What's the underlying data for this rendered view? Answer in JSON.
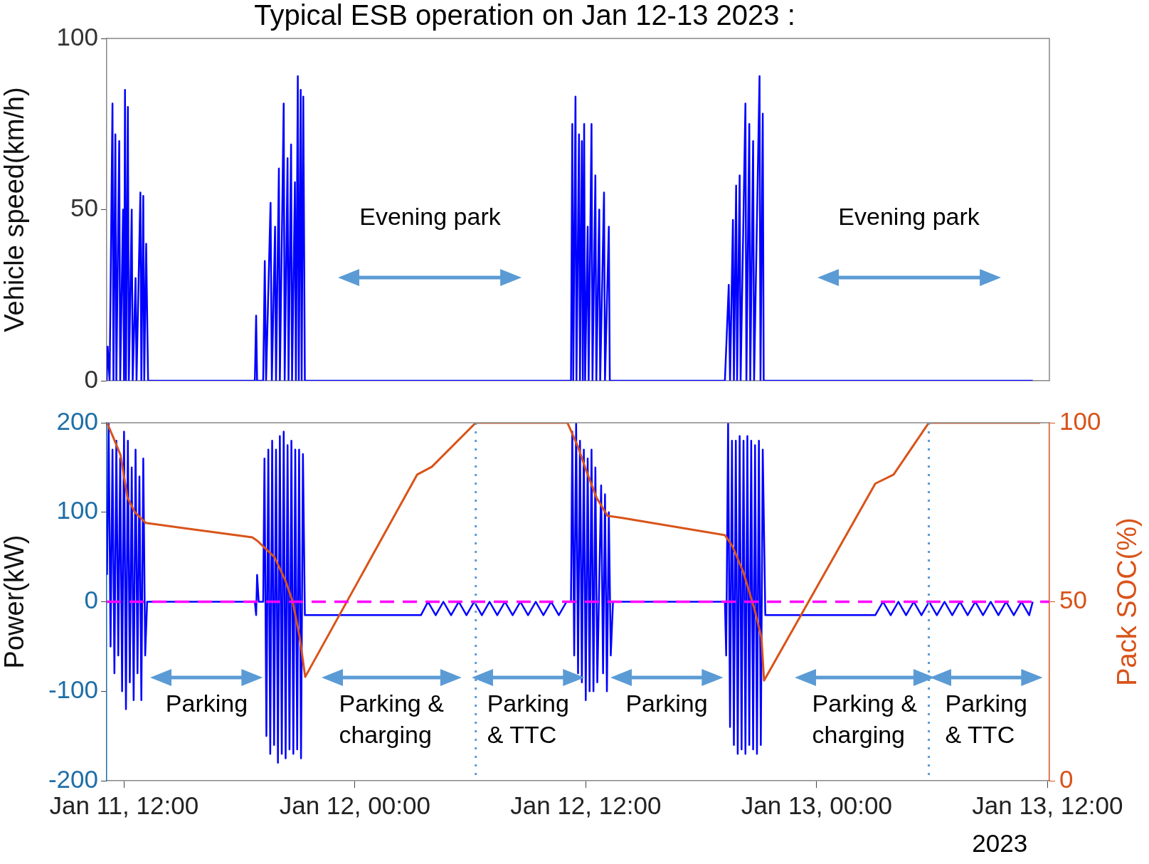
{
  "chart_data": [
    {
      "type": "line",
      "title": "Typical ESB operation on Jan 12-13 2023 :",
      "ylabel": "Vehicle speed(km/h)",
      "xlim": [
        "2023-01-11T11:06",
        "2023-01-13T12:06"
      ],
      "ylim": [
        0,
        100
      ],
      "yticks": [
        0,
        50,
        100
      ],
      "tick_labels": "y",
      "grid": false,
      "legend": false,
      "series": [
        {
          "color": "#0000ff",
          "x": [
            "2023-01-11T11:06",
            "2023-01-11T11:09",
            "2023-01-11T11:15",
            "2023-01-11T11:24",
            "2023-01-11T11:27",
            "2023-01-11T11:33",
            "2023-01-11T11:36",
            "2023-01-11T11:45",
            "2023-01-11T11:48",
            "2023-01-11T11:57",
            "2023-01-11T12:00",
            "2023-01-11T12:03",
            "2023-01-11T12:06",
            "2023-01-11T12:12",
            "2023-01-11T12:15",
            "2023-01-11T12:24",
            "2023-01-11T12:27",
            "2023-01-11T12:36",
            "2023-01-11T12:39",
            "2023-01-11T12:51",
            "2023-01-11T12:54",
            "2023-01-11T13:00",
            "2023-01-11T13:03",
            "2023-01-11T13:09",
            "2023-01-11T13:15",
            "2023-01-11T18:48",
            "2023-01-11T18:52",
            "2023-01-11T18:55",
            "2023-01-11T19:14",
            "2023-01-11T19:19",
            "2023-01-11T19:23",
            "2023-01-11T19:37",
            "2023-01-11T19:41",
            "2023-01-11T19:51",
            "2023-01-11T19:54",
            "2023-01-11T20:03",
            "2023-01-11T20:06",
            "2023-01-11T20:18",
            "2023-01-11T20:21",
            "2023-01-11T20:30",
            "2023-01-11T20:33",
            "2023-01-11T20:41",
            "2023-01-11T20:44",
            "2023-01-11T20:53",
            "2023-01-11T20:56",
            "2023-01-11T21:02",
            "2023-01-11T21:05",
            "2023-01-11T21:11",
            "2023-01-11T21:14",
            "2023-01-11T21:19",
            "2023-01-11T21:24",
            "2023-01-12T11:14",
            "2023-01-12T11:18",
            "2023-01-12T11:21",
            "2023-01-12T11:28",
            "2023-01-12T11:31",
            "2023-01-12T11:39",
            "2023-01-12T11:42",
            "2023-01-12T11:48",
            "2023-01-12T11:51",
            "2023-01-12T11:55",
            "2023-01-12T11:58",
            "2023-01-12T12:06",
            "2023-01-12T12:09",
            "2023-01-12T12:18",
            "2023-01-12T12:21",
            "2023-01-12T12:30",
            "2023-01-12T12:33",
            "2023-01-12T12:42",
            "2023-01-12T12:45",
            "2023-01-12T12:57",
            "2023-01-12T13:00",
            "2023-01-12T13:12",
            "2023-01-12T13:15",
            "2023-01-12T13:25",
            "2023-01-12T19:14",
            "2023-01-12T19:26",
            "2023-01-12T19:30",
            "2023-01-12T19:39",
            "2023-01-12T19:42",
            "2023-01-12T19:49",
            "2023-01-12T19:52",
            "2023-01-12T20:00",
            "2023-01-12T20:03",
            "2023-01-12T20:18",
            "2023-01-12T20:21",
            "2023-01-12T20:30",
            "2023-01-12T20:33",
            "2023-01-12T20:42",
            "2023-01-12T20:45",
            "2023-01-12T21:02",
            "2023-01-12T21:05",
            "2023-01-12T21:12",
            "2023-01-12T21:15",
            "2023-01-12T21:20",
            "2023-01-13T11:14"
          ],
          "values": [
            0,
            10,
            0,
            81,
            0,
            72,
            0,
            70,
            0,
            50,
            0,
            85,
            0,
            80,
            0,
            50,
            0,
            30,
            0,
            55,
            0,
            54,
            0,
            40,
            0,
            0,
            19,
            0,
            0,
            35,
            0,
            52,
            0,
            45,
            0,
            62,
            0,
            81,
            0,
            65,
            0,
            69,
            0,
            58,
            0,
            89,
            0,
            85,
            0,
            83,
            0,
            0,
            75,
            0,
            83,
            0,
            72,
            0,
            70,
            0,
            75,
            0,
            45,
            0,
            75,
            0,
            60,
            0,
            50,
            0,
            55,
            0,
            45,
            0,
            0,
            0,
            28,
            0,
            47,
            0,
            57,
            0,
            60,
            0,
            81,
            0,
            75,
            0,
            70,
            0,
            89,
            0,
            78,
            0,
            0,
            0
          ]
        }
      ],
      "annotations": [
        "Evening park",
        "Evening park"
      ]
    },
    {
      "type": "line",
      "ylabel": "Power(kW)",
      "y2label": "Pack SOC(%)",
      "xlim": [
        "2023-01-11T11:06",
        "2023-01-13T12:06"
      ],
      "xticks": [
        {
          "value": "2023-01-11T12:00",
          "label": "Jan 11, 12:00"
        },
        {
          "value": "2023-01-12T00:00",
          "label": "Jan 12, 00:00"
        },
        {
          "value": "2023-01-12T12:00",
          "label": "Jan 12, 12:00"
        },
        {
          "value": "2023-01-13T00:00",
          "label": "Jan 13, 00:00"
        },
        {
          "value": "2023-01-13T12:00",
          "label": "Jan 13, 12:00"
        }
      ],
      "ylim": [
        -200,
        200
      ],
      "yticks": [
        -200,
        -100,
        0,
        100,
        200
      ],
      "y2lim": [
        0,
        100
      ],
      "y2ticks": [
        0,
        50,
        100
      ],
      "grid": false,
      "legend": false,
      "series": [
        {
          "color": "#0000ff",
          "x": [
            "2023-01-11T11:07",
            "2023-01-11T11:12",
            "2023-01-11T11:18",
            "2023-01-11T11:24",
            "2023-01-11T11:30",
            "2023-01-11T11:36",
            "2023-01-11T11:42",
            "2023-01-11T11:48",
            "2023-01-11T11:54",
            "2023-01-11T12:00",
            "2023-01-11T12:06",
            "2023-01-11T12:12",
            "2023-01-11T12:18",
            "2023-01-11T12:24",
            "2023-01-11T12:30",
            "2023-01-11T12:36",
            "2023-01-11T12:42",
            "2023-01-11T12:48",
            "2023-01-11T12:54",
            "2023-01-11T13:00",
            "2023-01-11T13:06",
            "2023-01-11T13:12",
            "2023-01-11T18:48",
            "2023-01-11T18:52",
            "2023-01-11T18:55",
            "2023-01-11T19:00",
            "2023-01-11T19:14",
            "2023-01-11T19:18",
            "2023-01-11T19:24",
            "2023-01-11T19:30",
            "2023-01-11T19:36",
            "2023-01-11T19:42",
            "2023-01-11T19:48",
            "2023-01-11T19:54",
            "2023-01-11T20:00",
            "2023-01-11T20:06",
            "2023-01-11T20:12",
            "2023-01-11T20:18",
            "2023-01-11T20:24",
            "2023-01-11T20:30",
            "2023-01-11T20:36",
            "2023-01-11T20:42",
            "2023-01-11T20:48",
            "2023-01-11T20:54",
            "2023-01-11T21:00",
            "2023-01-11T21:06",
            "2023-01-11T21:12",
            "2023-01-11T21:18",
            "2023-01-11T21:24",
            "2023-01-12T03:26",
            "2023-01-12T03:48",
            "2023-01-12T04:12",
            "2023-01-12T04:36",
            "2023-01-12T05:00",
            "2023-01-12T05:24",
            "2023-01-12T05:48",
            "2023-01-12T06:12",
            "2023-01-12T06:36",
            "2023-01-12T07:00",
            "2023-01-12T07:24",
            "2023-01-12T07:48",
            "2023-01-12T08:12",
            "2023-01-12T08:36",
            "2023-01-12T09:00",
            "2023-01-12T09:24",
            "2023-01-12T09:48",
            "2023-01-12T10:12",
            "2023-01-12T10:36",
            "2023-01-12T11:00",
            "2023-01-12T11:14",
            "2023-01-12T11:18",
            "2023-01-12T11:24",
            "2023-01-12T11:30",
            "2023-01-12T11:36",
            "2023-01-12T11:42",
            "2023-01-12T11:48",
            "2023-01-12T11:54",
            "2023-01-12T12:00",
            "2023-01-12T12:06",
            "2023-01-12T12:12",
            "2023-01-12T12:18",
            "2023-01-12T12:24",
            "2023-01-12T12:30",
            "2023-01-12T12:36",
            "2023-01-12T12:48",
            "2023-01-12T12:54",
            "2023-01-12T13:00",
            "2023-01-12T13:06",
            "2023-01-12T13:12",
            "2023-01-12T13:18",
            "2023-01-12T13:25",
            "2023-01-12T19:14",
            "2023-01-12T19:18",
            "2023-01-12T19:24",
            "2023-01-12T19:30",
            "2023-01-12T19:36",
            "2023-01-12T19:42",
            "2023-01-12T19:48",
            "2023-01-12T19:54",
            "2023-01-12T20:00",
            "2023-01-12T20:06",
            "2023-01-12T20:12",
            "2023-01-12T20:18",
            "2023-01-12T20:24",
            "2023-01-12T20:30",
            "2023-01-12T20:36",
            "2023-01-12T20:42",
            "2023-01-12T20:48",
            "2023-01-12T20:54",
            "2023-01-12T21:00",
            "2023-01-12T21:06",
            "2023-01-12T21:12",
            "2023-01-12T21:20",
            "2023-01-13T03:03",
            "2023-01-13T03:27",
            "2023-01-13T03:51",
            "2023-01-13T04:15",
            "2023-01-13T04:39",
            "2023-01-13T05:03",
            "2023-01-13T05:27",
            "2023-01-13T05:51",
            "2023-01-13T06:15",
            "2023-01-13T06:39",
            "2023-01-13T07:03",
            "2023-01-13T07:27",
            "2023-01-13T07:51",
            "2023-01-13T08:15",
            "2023-01-13T08:39",
            "2023-01-13T09:03",
            "2023-01-13T09:27",
            "2023-01-13T09:51",
            "2023-01-13T10:15",
            "2023-01-13T10:39",
            "2023-01-13T11:03",
            "2023-01-13T11:14"
          ],
          "values": [
            30,
            200,
            -50,
            170,
            -80,
            180,
            -60,
            160,
            -100,
            190,
            -120,
            180,
            -90,
            150,
            -110,
            170,
            -80,
            140,
            -110,
            160,
            -60,
            0,
            0,
            -15,
            30,
            0,
            0,
            160,
            -150,
            170,
            -170,
            180,
            -160,
            170,
            -180,
            185,
            -170,
            190,
            -175,
            175,
            -165,
            180,
            -170,
            170,
            -165,
            170,
            -175,
            165,
            -15,
            -15,
            0,
            -15,
            0,
            -15,
            0,
            -15,
            0,
            -15,
            0,
            -15,
            0,
            -15,
            0,
            -15,
            0,
            -15,
            0,
            -15,
            0,
            0,
            190,
            -60,
            200,
            -80,
            180,
            -90,
            170,
            -110,
            160,
            -100,
            170,
            -100,
            150,
            -90,
            130,
            -80,
            120,
            -100,
            100,
            -60,
            0,
            0,
            -60,
            200,
            -140,
            180,
            -160,
            180,
            -170,
            185,
            -165,
            180,
            -170,
            185,
            -160,
            180,
            -165,
            175,
            -170,
            180,
            -160,
            170,
            -15,
            -15,
            0,
            -15,
            0,
            -15,
            0,
            -15,
            0,
            -15,
            0,
            -15,
            0,
            -15,
            0,
            -15,
            0,
            -15,
            0,
            -15,
            0,
            -15,
            0
          ]
        },
        {
          "color": "#d95319",
          "axis": "y2",
          "x": [
            "2023-01-11T11:07",
            "2023-01-11T11:26",
            "2023-01-11T11:49",
            "2023-01-11T12:11",
            "2023-01-11T12:34",
            "2023-01-11T13:08",
            "2023-01-11T18:40",
            "2023-01-11T18:56",
            "2023-01-11T19:49",
            "2023-01-11T20:23",
            "2023-01-11T20:46",
            "2023-01-11T21:08",
            "2023-01-11T21:25",
            "2023-01-12T03:14",
            "2023-01-12T04:00",
            "2023-01-12T06:17",
            "2023-01-12T11:03",
            "2023-01-12T11:37",
            "2023-01-12T12:00",
            "2023-01-12T12:34",
            "2023-01-12T13:08",
            "2023-01-12T13:54",
            "2023-01-12T19:14",
            "2023-01-12T19:37",
            "2023-01-12T20:11",
            "2023-01-12T20:46",
            "2023-01-12T21:08",
            "2023-01-12T21:16",
            "2023-01-13T03:03",
            "2023-01-13T04:00",
            "2023-01-13T05:50",
            "2023-01-13T11:37"
          ],
          "values": [
            100,
            96,
            91,
            79,
            75,
            72,
            68,
            67,
            62.5,
            56,
            50,
            40,
            29,
            85.5,
            87.7,
            100,
            100,
            93,
            87,
            79,
            74,
            73.4,
            68.6,
            65.6,
            58.4,
            48,
            40,
            28,
            83,
            85.5,
            100,
            100
          ]
        }
      ],
      "ref_lines": [
        {
          "axis": "y",
          "value": 0,
          "color": "#ff00ff",
          "line_style": "dashed"
        },
        {
          "axis": "x",
          "value": "2023-01-12T06:17",
          "color": "#5b9bd5",
          "line_style": "dotted"
        },
        {
          "axis": "x",
          "value": "2023-01-13T05:50",
          "color": "#5b9bd5",
          "line_style": "dotted"
        }
      ],
      "annotations": [
        "Parking",
        "Parking &\ncharging",
        "Parking\n& TTC",
        "Parking",
        "Parking &\ncharging",
        "Parking\n& TTC",
        "2023"
      ]
    }
  ]
}
